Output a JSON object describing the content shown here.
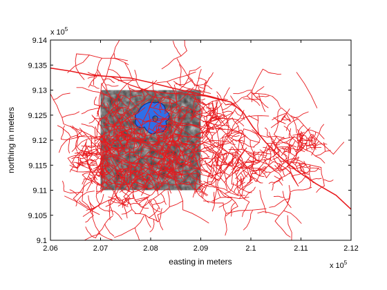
{
  "chart_data": {
    "type": "map-overlay",
    "xlabel": "easting in meters",
    "ylabel": "northing in meters",
    "x_ticks": [
      "2.06",
      "2.07",
      "2.08",
      "2.09",
      "2.1",
      "2.11",
      "2.12"
    ],
    "y_ticks": [
      "9.1",
      "9.105",
      "9.11",
      "9.115",
      "9.12",
      "9.125",
      "9.13",
      "9.135",
      "9.14"
    ],
    "x_multiplier": {
      "base": "x 10",
      "exp": "5"
    },
    "y_multiplier": {
      "base": "x 10",
      "exp": "5"
    },
    "xlim": [
      206000,
      212000
    ],
    "ylim": [
      910000,
      914000
    ],
    "image_extent": {
      "x": [
        207000,
        209000
      ],
      "y": [
        911000,
        913000
      ]
    },
    "colors": {
      "roads": "#e8181c",
      "water": "#2f6fe8",
      "water_edge": "#0b2f8f",
      "image_dark": "#3a3a3a",
      "image_light": "#d9d9d9"
    },
    "main_road": [
      [
        206000,
        913440
      ],
      [
        206400,
        913380
      ],
      [
        206800,
        913300
      ],
      [
        207200,
        913270
      ],
      [
        207600,
        913240
      ],
      [
        208000,
        913150
      ],
      [
        208400,
        913050
      ],
      [
        208800,
        912960
      ],
      [
        209200,
        912870
      ],
      [
        209600,
        912760
      ],
      [
        209850,
        912550
      ],
      [
        210050,
        912250
      ],
      [
        210300,
        911950
      ],
      [
        210600,
        911650
      ],
      [
        210900,
        911400
      ],
      [
        211300,
        911130
      ],
      [
        211700,
        910900
      ],
      [
        212000,
        910620
      ]
    ],
    "secondary_road": [
      [
        207200,
        913270
      ],
      [
        207600,
        913100
      ],
      [
        207900,
        913000
      ],
      [
        208300,
        912940
      ],
      [
        208700,
        912920
      ],
      [
        209100,
        912880
      ],
      [
        209500,
        912780
      ]
    ]
  }
}
